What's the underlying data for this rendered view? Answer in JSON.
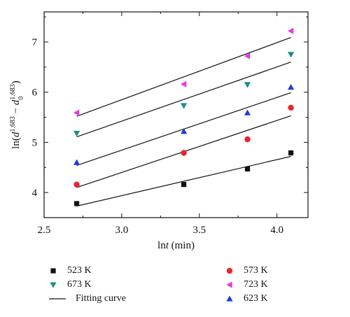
{
  "chart_data": {
    "type": "scatter",
    "xlabel": "lnt (min)",
    "ylabel": "ln(d^1.683 − d0^1.683)",
    "xlim": [
      2.5,
      4.2
    ],
    "ylim": [
      3.5,
      7.6
    ],
    "xticks": [
      "2.5",
      "3.0",
      "3.5",
      "4.0"
    ],
    "yticks": [
      "4",
      "5",
      "6",
      "7"
    ],
    "grid": false,
    "legend_position": "bottom",
    "series": [
      {
        "name": "523 K",
        "marker": "square",
        "color": "#111111",
        "x": [
          2.71,
          3.4,
          3.81,
          4.09
        ],
        "y": [
          3.78,
          4.16,
          4.47,
          4.79
        ],
        "fit": [
          3.73,
          4.72
        ]
      },
      {
        "name": "573 K",
        "marker": "circle",
        "color": "#e8262b",
        "x": [
          2.71,
          3.4,
          3.81,
          4.09
        ],
        "y": [
          4.16,
          4.79,
          5.06,
          5.69
        ],
        "fit": [
          4.1,
          5.53
        ]
      },
      {
        "name": "623 K",
        "marker": "triangle-up",
        "color": "#1f3dd6",
        "x": [
          2.71,
          3.4,
          3.81,
          4.09
        ],
        "y": [
          4.6,
          5.22,
          5.59,
          6.1
        ],
        "fit": [
          4.54,
          5.99
        ]
      },
      {
        "name": "673 K",
        "marker": "triangle-down",
        "color": "#1a8f87",
        "x": [
          2.71,
          3.4,
          3.81,
          4.09
        ],
        "y": [
          5.18,
          5.73,
          6.15,
          6.75
        ],
        "fit": [
          5.11,
          6.6
        ]
      },
      {
        "name": "723 K",
        "marker": "triangle-left",
        "color": "#e339e6",
        "x": [
          2.71,
          3.4,
          3.81,
          4.09
        ],
        "y": [
          5.59,
          6.16,
          6.72,
          7.22
        ],
        "fit": [
          5.52,
          7.09
        ]
      }
    ],
    "fit_x": [
      2.71,
      4.09
    ],
    "fit_label": "Fitting curve",
    "legend_order": [
      "523 K",
      "573 K",
      "673 K",
      "723 K",
      "fit",
      "623 K"
    ]
  }
}
